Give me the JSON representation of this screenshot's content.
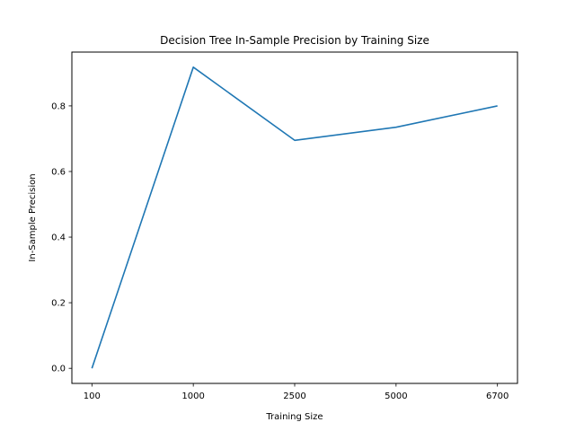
{
  "chart_data": {
    "type": "line",
    "title": "Decision Tree In-Sample Precision by Training Size",
    "xlabel": "Training Size",
    "ylabel": "In-Sample Precision",
    "categories": [
      "100",
      "1000",
      "2500",
      "5000",
      "6700"
    ],
    "series": [
      {
        "values": [
          0.0,
          0.918,
          0.695,
          0.735,
          0.8
        ],
        "color": "#1f77b4"
      }
    ],
    "ylim": [
      -0.046,
      0.964
    ],
    "yticks": [
      "0.0",
      "0.2",
      "0.4",
      "0.6",
      "0.8"
    ],
    "grid": false,
    "legend": "none"
  }
}
